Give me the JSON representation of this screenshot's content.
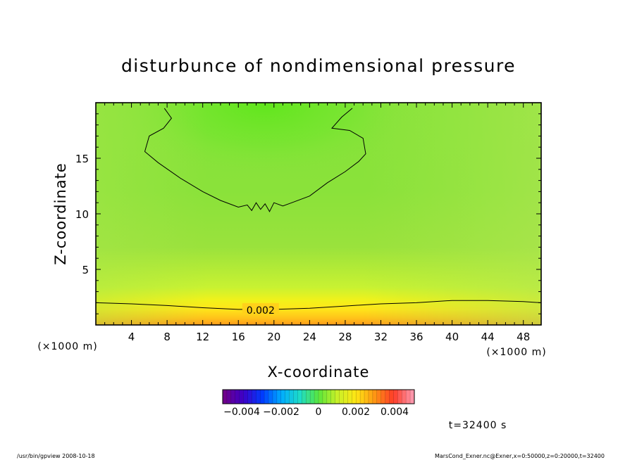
{
  "chart_data": {
    "type": "heatmap",
    "title": "disturbunce of nondimensional pressure",
    "xlabel": "X-coordinate",
    "ylabel": "Z-coordinate",
    "x_unit": "(×1000 m)",
    "x_unit_right": "(×1000 m)",
    "xlim": [
      0,
      50
    ],
    "ylim": [
      0,
      20
    ],
    "x_ticks": [
      "4",
      "8",
      "12",
      "16",
      "20",
      "24",
      "28",
      "32",
      "36",
      "40",
      "44",
      "48"
    ],
    "y_ticks": [
      "5",
      "10",
      "15"
    ],
    "contours": [
      {
        "level": 0.002,
        "label": "0.002",
        "points": [
          [
            0,
            2.0
          ],
          [
            4,
            1.9
          ],
          [
            8,
            1.75
          ],
          [
            12,
            1.55
          ],
          [
            16,
            1.4
          ],
          [
            20,
            1.4
          ],
          [
            24,
            1.5
          ],
          [
            28,
            1.7
          ],
          [
            32,
            1.9
          ],
          [
            36,
            2.0
          ],
          [
            40,
            2.2
          ],
          [
            44,
            2.2
          ],
          [
            48,
            2.1
          ],
          [
            50,
            2.0
          ]
        ]
      },
      {
        "level": 0.0,
        "points": [
          [
            7.7,
            19.5
          ],
          [
            8.5,
            18.6
          ],
          [
            7.6,
            17.7
          ],
          [
            6.0,
            17.0
          ],
          [
            5.5,
            15.6
          ],
          [
            7.0,
            14.6
          ],
          [
            9.5,
            13.2
          ],
          [
            12,
            12.0
          ],
          [
            14,
            11.2
          ],
          [
            16,
            10.6
          ],
          [
            17,
            10.8
          ],
          [
            17.5,
            10.3
          ],
          [
            18,
            11.0
          ],
          [
            18.5,
            10.4
          ],
          [
            19,
            10.9
          ],
          [
            19.5,
            10.2
          ],
          [
            20,
            11.0
          ],
          [
            21,
            10.7
          ],
          [
            22,
            11.0
          ],
          [
            24,
            11.6
          ],
          [
            26,
            12.8
          ],
          [
            28,
            13.8
          ],
          [
            29.5,
            14.7
          ],
          [
            30.3,
            15.4
          ],
          [
            30.0,
            16.8
          ],
          [
            28.5,
            17.5
          ],
          [
            26.5,
            17.7
          ],
          [
            27.6,
            18.7
          ],
          [
            28.8,
            19.5
          ]
        ]
      }
    ],
    "colorbar": {
      "ticks": [
        "−0.004",
        "−0.002",
        "0",
        "0.002",
        "0.004"
      ]
    },
    "time_label": "t=32400 s"
  },
  "footer": {
    "left": "/usr/bin/gpview  2008-10-18",
    "right": "MarsCond_Exner.nc@Exner,x=0:50000,z=0:20000,t=32400"
  }
}
